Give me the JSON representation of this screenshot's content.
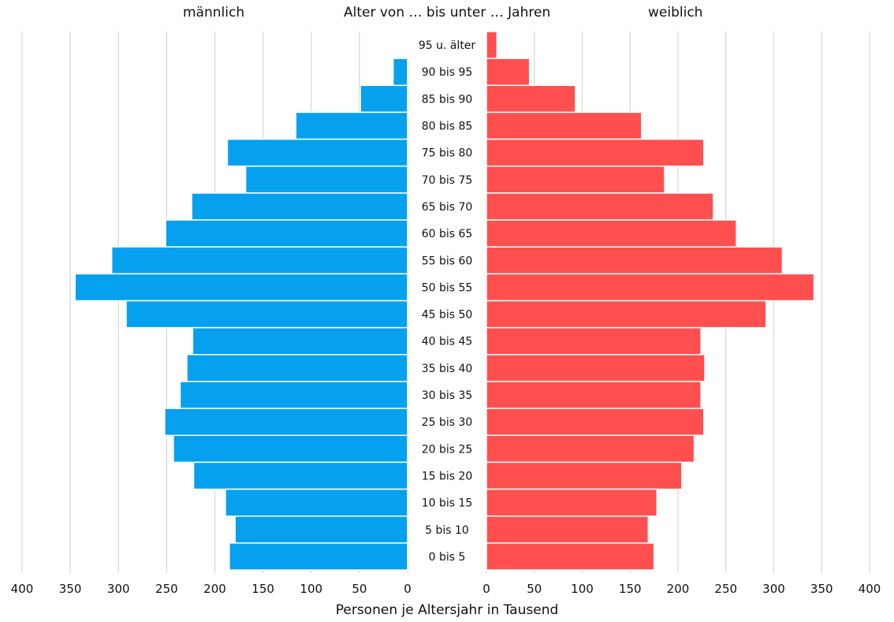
{
  "chart_data": {
    "type": "bar",
    "orientation": "horizontal",
    "layout": "population-pyramid",
    "header": {
      "left": "männlich",
      "center": "Alter von … bis unter … Jahren",
      "right": "weiblich"
    },
    "xlabel": "Personen je Altersjahr in Tausend",
    "xlim": [
      0,
      400
    ],
    "x_ticks": [
      0,
      50,
      100,
      150,
      200,
      250,
      300,
      350,
      400
    ],
    "grid": true,
    "categories": [
      "95 u. älter",
      "90 bis 95",
      "85 bis 90",
      "80 bis 85",
      "75 bis 80",
      "70 bis 75",
      "65 bis 70",
      "60 bis 65",
      "55 bis 60",
      "50 bis 55",
      "45 bis 50",
      "40 bis 45",
      "35 bis 40",
      "30 bis 35",
      "25 bis 30",
      "20 bis 25",
      "15 bis 20",
      "10 bis 15",
      "5 bis 10",
      "0 bis 5"
    ],
    "series": [
      {
        "name": "männlich",
        "side": "left",
        "color": "#05A1EE",
        "values": [
          1,
          15,
          49,
          116,
          187,
          168,
          224,
          251,
          307,
          345,
          292,
          223,
          229,
          236,
          252,
          243,
          222,
          189,
          179,
          185
        ]
      },
      {
        "name": "weiblich",
        "side": "right",
        "color": "#FF4F4F",
        "values": [
          11,
          45,
          93,
          162,
          227,
          186,
          237,
          261,
          309,
          342,
          292,
          224,
          228,
          224,
          227,
          217,
          204,
          178,
          169,
          175
        ]
      }
    ]
  }
}
